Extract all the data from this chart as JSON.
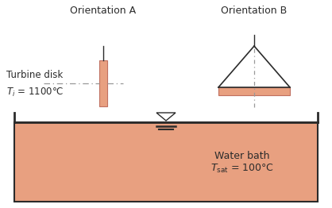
{
  "bg_color": "#ffffff",
  "salmon_color": "#E8A080",
  "dark_color": "#2b2b2b",
  "dash_color": "#999999",
  "orient_a_label": "Orientation A",
  "orient_b_label": "Orientation B",
  "turbine_label_1": "Turbine disk",
  "turbine_label_2": "$T_i$ = 1100°C",
  "water_label_1": "Water bath",
  "water_label_2": "$T_{\\mathrm{sat}}$ = 100°C",
  "fig_width": 4.18,
  "fig_height": 2.62,
  "dpi": 100
}
